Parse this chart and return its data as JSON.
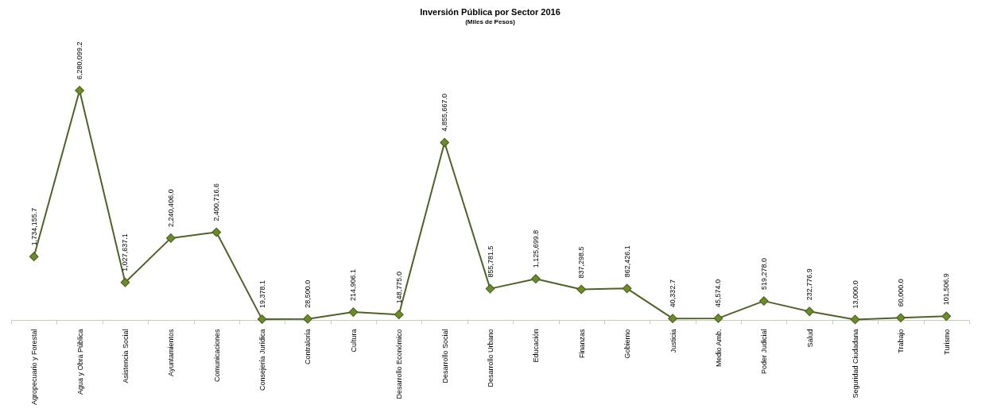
{
  "chart_data": {
    "type": "line",
    "title": "Inversión Pública por Sector 2016",
    "subtitle": "(Miles de Pesos)",
    "categories": [
      "Agropecuario y Forestal",
      "Agua y Obra Pública",
      "Asistencia Social",
      "Ayuntamientos",
      "Comunicaciones",
      "Consejería Jurídica",
      "Contraloría",
      "Cultura",
      "Desarrollo Económico",
      "Desarrollo Social",
      "Desarrollo Urbano",
      "Educación",
      "Finanzas",
      "Gobierno",
      "Justicia",
      "Medio Amb.",
      "Poder Judicial",
      "Salud",
      "Seguridad Ciudadana",
      "Trabajo",
      "Turismo"
    ],
    "series": [
      {
        "color": "#4f6228",
        "values": [
          1734155.7,
          6280099.2,
          1027637.1,
          2240406.0,
          2400716.6,
          19378.1,
          28500.0,
          214906.1,
          148775.0,
          4855667.0,
          855781.5,
          1125699.8,
          837298.5,
          862426.1,
          40332.7,
          45574.0,
          519278.0,
          232776.9,
          13000.0,
          60000.0,
          101506.9
        ],
        "value_labels": [
          "1,734,155.7",
          "6,280,099.2",
          "1,027,637.1",
          "2,240,406.0",
          "2,400,716.6",
          "19,378.1",
          "28,500.0",
          "214,906.1",
          "148,775.0",
          "4,855,667.0",
          "855,781.5",
          "1,125,699.8",
          "837,298.5",
          "862,426.1",
          "40,332.7",
          "45,574.0",
          "519,278.0",
          "232,776.9",
          "13,000.0",
          "60,000.0",
          "101,506.9"
        ]
      }
    ],
    "marker": "diamond",
    "line_style": "solid",
    "grid": false
  }
}
